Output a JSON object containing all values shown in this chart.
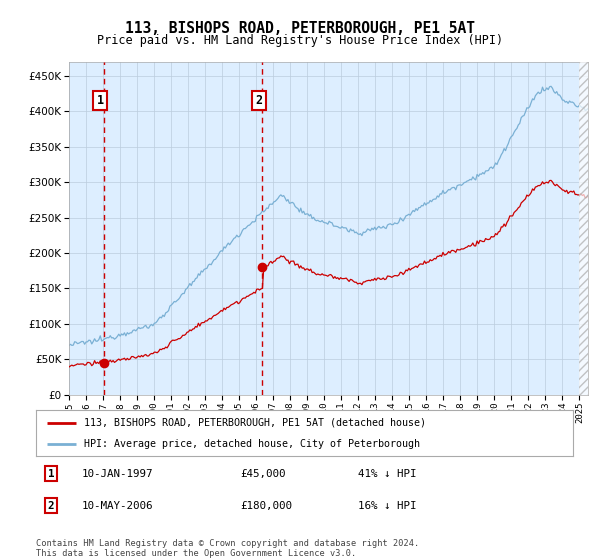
{
  "title": "113, BISHOPS ROAD, PETERBOROUGH, PE1 5AT",
  "subtitle": "Price paid vs. HM Land Registry's House Price Index (HPI)",
  "legend_label_red": "113, BISHOPS ROAD, PETERBOROUGH, PE1 5AT (detached house)",
  "legend_label_blue": "HPI: Average price, detached house, City of Peterborough",
  "annotation1_date": "10-JAN-1997",
  "annotation1_price": 45000,
  "annotation1_hpi_pct": "41% ↓ HPI",
  "annotation2_date": "10-MAY-2006",
  "annotation2_price": 180000,
  "annotation2_hpi_pct": "16% ↓ HPI",
  "footer": "Contains HM Land Registry data © Crown copyright and database right 2024.\nThis data is licensed under the Open Government Licence v3.0.",
  "xlim_start": 1995.0,
  "xlim_end": 2025.5,
  "ylim_min": 0,
  "ylim_max": 470000,
  "red_color": "#cc0000",
  "blue_color": "#7ab0d4",
  "background_color": "#ddeeff",
  "plot_bg_color": "#ffffff",
  "grid_color": "#bbccdd",
  "sale1_year": 1997.04,
  "sale1_price": 45000,
  "sale2_year": 2006.37,
  "sale2_price": 180000,
  "yticks": [
    0,
    50000,
    100000,
    150000,
    200000,
    250000,
    300000,
    350000,
    400000,
    450000
  ]
}
